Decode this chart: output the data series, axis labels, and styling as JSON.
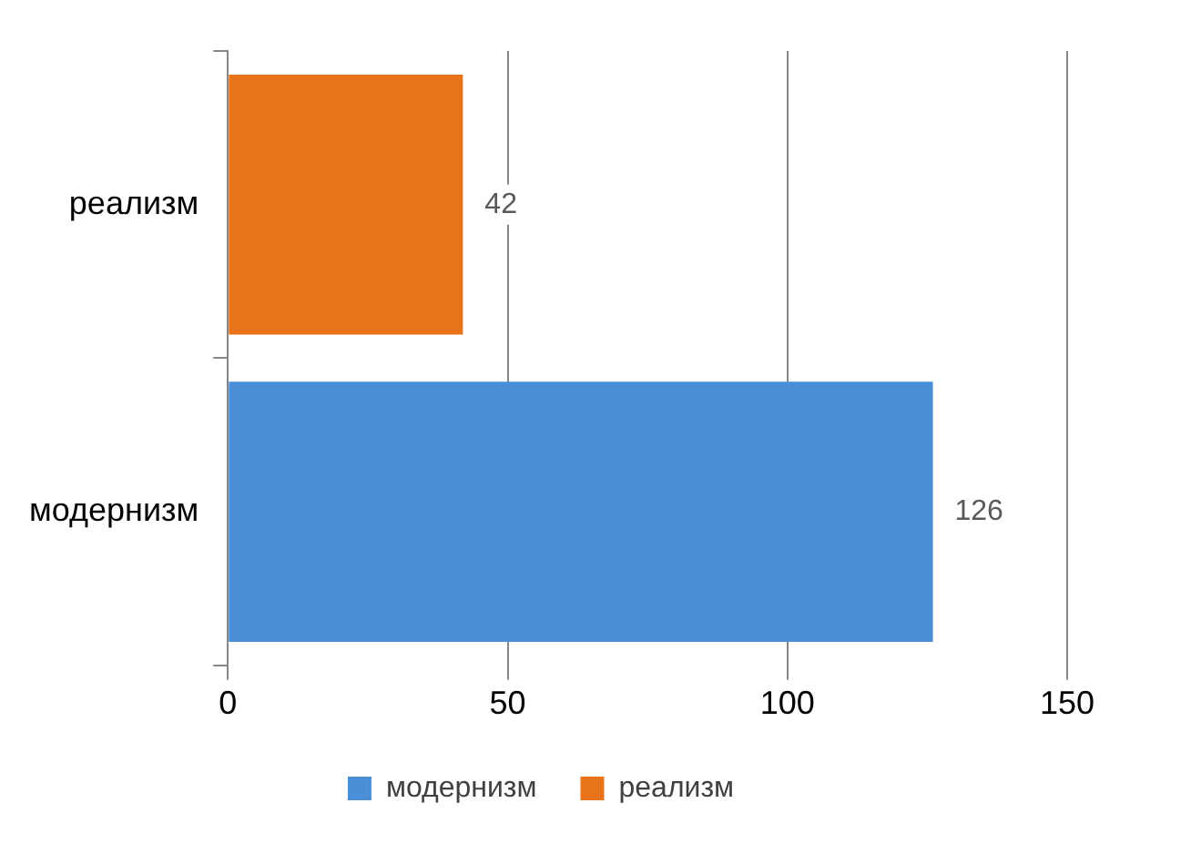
{
  "chart_data": {
    "type": "bar",
    "orientation": "horizontal",
    "categories": [
      "реализм",
      "модернизм"
    ],
    "series": [
      {
        "name": "модернизм",
        "color": "#4a8fd8",
        "values": [
          null,
          126
        ]
      },
      {
        "name": "реализм",
        "color": "#e8731a",
        "values": [
          42,
          null
        ]
      }
    ],
    "xlim": [
      0,
      150
    ],
    "xticks": [
      0,
      50,
      100,
      150
    ],
    "grid": "x",
    "legend": "bottom",
    "data_labels": true
  }
}
